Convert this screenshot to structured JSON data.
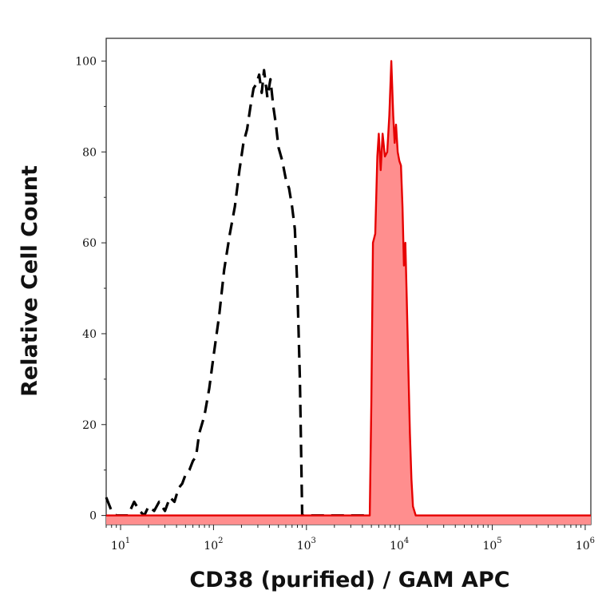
{
  "chart_data": {
    "type": "area",
    "xlabel": "CD38 (purified) / GAM APC",
    "ylabel": "Relative Cell Count",
    "xscale": "log",
    "xlim": [
      7,
      1150000
    ],
    "ylim": [
      -2,
      105
    ],
    "grid": false,
    "legend": "none",
    "y_ticks": [
      0,
      20,
      40,
      60,
      80,
      100
    ],
    "x_ticks": [
      {
        "value": 10,
        "base": "10",
        "exp": "1"
      },
      {
        "value": 100,
        "base": "10",
        "exp": "2"
      },
      {
        "value": 1000,
        "base": "10",
        "exp": "3"
      },
      {
        "value": 10000,
        "base": "10",
        "exp": "4"
      },
      {
        "value": 100000,
        "base": "10",
        "exp": "5"
      },
      {
        "value": 1000000,
        "base": "10",
        "exp": "6"
      }
    ],
    "series": [
      {
        "style": "dashed-line",
        "color": "#000000",
        "x": [
          7,
          8,
          9,
          10,
          12,
          14,
          16,
          18,
          20,
          23,
          26,
          30,
          34,
          38,
          42,
          46,
          50,
          55,
          60,
          65,
          70,
          80,
          90,
          100,
          115,
          130,
          150,
          170,
          190,
          210,
          230,
          250,
          270,
          290,
          310,
          330,
          350,
          380,
          410,
          440,
          470,
          500,
          550,
          600,
          650,
          700,
          750,
          800,
          850,
          900,
          950,
          1000,
          1200,
          2000,
          5000
        ],
        "y": [
          4,
          1,
          0,
          0,
          0,
          3,
          1,
          0,
          2,
          1,
          3,
          1,
          4,
          3,
          6,
          7,
          9,
          10,
          12,
          13,
          18,
          22,
          28,
          35,
          44,
          54,
          62,
          68,
          76,
          82,
          85,
          90,
          94,
          95,
          97,
          93,
          98,
          92,
          96,
          90,
          86,
          81,
          78,
          74,
          72,
          68,
          63,
          50,
          30,
          0,
          0,
          0,
          0,
          0,
          0
        ]
      },
      {
        "style": "filled-area",
        "color": "#e60000",
        "fill": "#ff8e8e",
        "x": [
          7,
          100,
          1000,
          4800,
          5000,
          5200,
          5500,
          5800,
          6000,
          6300,
          6600,
          7000,
          7400,
          7800,
          8200,
          8600,
          8900,
          9200,
          9600,
          10000,
          10400,
          10800,
          11200,
          11600,
          12000,
          12500,
          13000,
          13500,
          14000,
          15000,
          16000,
          100000,
          1150000
        ],
        "y": [
          0,
          0,
          0,
          0,
          25,
          60,
          62,
          79,
          84,
          76,
          84,
          79,
          80,
          88,
          100,
          88,
          82,
          86,
          80,
          78,
          77,
          68,
          55,
          60,
          48,
          32,
          18,
          8,
          2,
          0,
          0,
          0,
          0
        ]
      }
    ]
  }
}
